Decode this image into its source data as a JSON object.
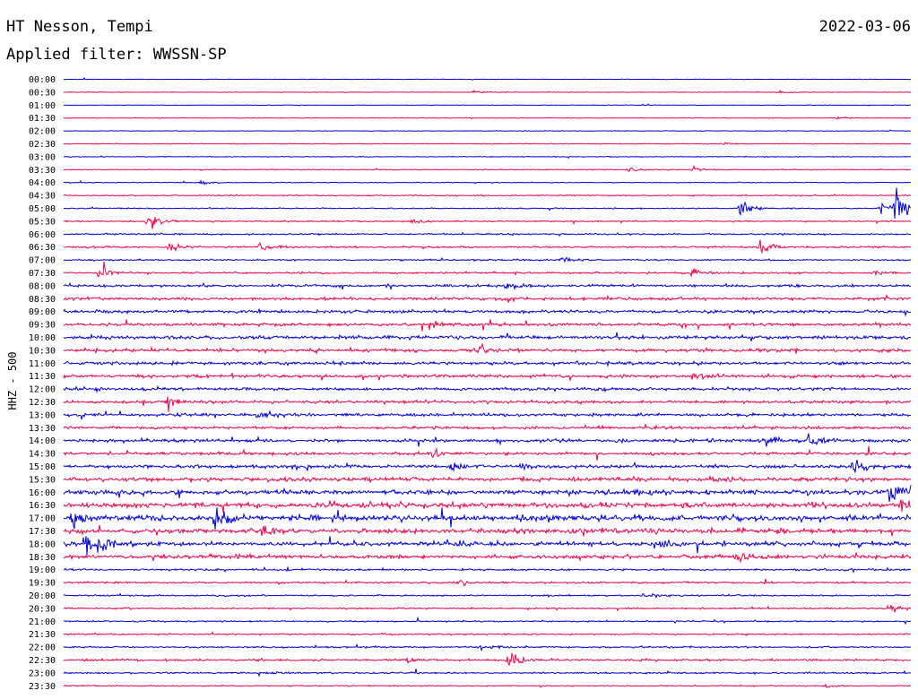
{
  "header": {
    "station": "HT Nesson, Tempi",
    "filter_label": "Applied filter: WWSSN-SP",
    "date": "2022-03-06"
  },
  "colors": {
    "even_trace": "#0000dd",
    "odd_trace": "#ee0044",
    "background": "#ffffff"
  },
  "chart_data": {
    "type": "line",
    "title": "HT Nesson, Tempi",
    "subtitle": "Applied filter: WWSSN-SP",
    "ylabel": "HHZ - 500",
    "xlabel": "",
    "grid": false,
    "legend": "none",
    "trace_minutes": 30,
    "categories": [
      "00:00",
      "00:30",
      "01:00",
      "01:30",
      "02:00",
      "02:30",
      "03:00",
      "03:30",
      "04:00",
      "04:30",
      "05:00",
      "05:30",
      "06:00",
      "06:30",
      "07:00",
      "07:30",
      "08:00",
      "08:30",
      "09:00",
      "09:30",
      "10:00",
      "10:30",
      "11:00",
      "11:30",
      "12:00",
      "12:30",
      "13:00",
      "13:30",
      "14:00",
      "14:30",
      "15:00",
      "15:30",
      "16:00",
      "16:30",
      "17:00",
      "17:30",
      "18:00",
      "18:30",
      "19:00",
      "19:30",
      "20:00",
      "20:30",
      "21:00",
      "21:30",
      "22:00",
      "22:30",
      "23:00",
      "23:30"
    ],
    "noise_level": [
      0.3,
      0.3,
      0.3,
      0.3,
      0.3,
      0.35,
      0.4,
      0.4,
      0.4,
      0.6,
      0.6,
      0.7,
      0.8,
      0.9,
      0.8,
      0.9,
      1.3,
      1.5,
      1.6,
      1.6,
      1.8,
      1.7,
      1.6,
      1.6,
      1.6,
      1.5,
      1.5,
      1.4,
      1.6,
      1.5,
      1.8,
      2.2,
      2.4,
      2.6,
      3.0,
      2.5,
      2.2,
      2.0,
      1.0,
      0.9,
      0.8,
      0.8,
      0.8,
      0.8,
      0.9,
      1.1,
      0.9,
      0.6
    ],
    "events": [
      {
        "trace": "00:30",
        "minute": 14.5,
        "amplitude": 2
      },
      {
        "trace": "00:30",
        "minute": 25.3,
        "amplitude": 3
      },
      {
        "trace": "01:30",
        "minute": 27.4,
        "amplitude": 2
      },
      {
        "trace": "02:30",
        "minute": 23.3,
        "amplitude": 2
      },
      {
        "trace": "03:30",
        "minute": 20.0,
        "amplitude": 3
      },
      {
        "trace": "03:30",
        "minute": 22.3,
        "amplitude": 3
      },
      {
        "trace": "04:00",
        "minute": 4.9,
        "amplitude": 2
      },
      {
        "trace": "05:00",
        "minute": 24.0,
        "amplitude": 12
      },
      {
        "trace": "05:00",
        "minute": 29.0,
        "amplitude": 10
      },
      {
        "trace": "05:00",
        "minute": 29.5,
        "amplitude": 40
      },
      {
        "trace": "05:30",
        "minute": 3.0,
        "amplitude": 11
      },
      {
        "trace": "05:30",
        "minute": 12.4,
        "amplitude": 4
      },
      {
        "trace": "06:30",
        "minute": 3.8,
        "amplitude": 5
      },
      {
        "trace": "06:30",
        "minute": 7.0,
        "amplitude": 4
      },
      {
        "trace": "06:30",
        "minute": 24.7,
        "amplitude": 12
      },
      {
        "trace": "07:00",
        "minute": 17.7,
        "amplitude": 4
      },
      {
        "trace": "07:30",
        "minute": 1.3,
        "amplitude": 11
      },
      {
        "trace": "07:30",
        "minute": 22.3,
        "amplitude": 5
      },
      {
        "trace": "07:30",
        "minute": 28.6,
        "amplitude": 4
      },
      {
        "trace": "08:00",
        "minute": 15.7,
        "amplitude": 6
      },
      {
        "trace": "09:30",
        "minute": 13.0,
        "amplitude": 6
      },
      {
        "trace": "10:30",
        "minute": 14.8,
        "amplitude": 7
      },
      {
        "trace": "11:30",
        "minute": 22.3,
        "amplitude": 6
      },
      {
        "trace": "12:30",
        "minute": 3.7,
        "amplitude": 10
      },
      {
        "trace": "13:00",
        "minute": 6.9,
        "amplitude": 6
      },
      {
        "trace": "14:00",
        "minute": 24.9,
        "amplitude": 9
      },
      {
        "trace": "14:00",
        "minute": 26.4,
        "amplitude": 8
      },
      {
        "trace": "14:30",
        "minute": 13.1,
        "amplitude": 5
      },
      {
        "trace": "15:00",
        "minute": 13.7,
        "amplitude": 4
      },
      {
        "trace": "15:00",
        "minute": 16.3,
        "amplitude": 4
      },
      {
        "trace": "15:00",
        "minute": 28.0,
        "amplitude": 8
      },
      {
        "trace": "16:00",
        "minute": 29.3,
        "amplitude": 12
      },
      {
        "trace": "16:30",
        "minute": 29.7,
        "amplitude": 6
      },
      {
        "trace": "17:00",
        "minute": 0.3,
        "amplitude": 10
      },
      {
        "trace": "17:00",
        "minute": 5.4,
        "amplitude": 18
      },
      {
        "trace": "17:30",
        "minute": 7.0,
        "amplitude": 9
      },
      {
        "trace": "18:00",
        "minute": 0.8,
        "amplitude": 14
      },
      {
        "trace": "18:00",
        "minute": 1.3,
        "amplitude": 18
      },
      {
        "trace": "18:00",
        "minute": 20.9,
        "amplitude": 7
      },
      {
        "trace": "18:30",
        "minute": 23.8,
        "amplitude": 7
      },
      {
        "trace": "19:30",
        "minute": 14.0,
        "amplitude": 4
      },
      {
        "trace": "20:00",
        "minute": 20.6,
        "amplitude": 3
      },
      {
        "trace": "20:30",
        "minute": 29.4,
        "amplitude": 6
      },
      {
        "trace": "22:00",
        "minute": 14.8,
        "amplitude": 3
      },
      {
        "trace": "22:30",
        "minute": 15.8,
        "amplitude": 12
      },
      {
        "trace": "22:30",
        "minute": 12.2,
        "amplitude": 4
      },
      {
        "trace": "23:00",
        "minute": 7.3,
        "amplitude": 3
      },
      {
        "trace": "23:30",
        "minute": 27.0,
        "amplitude": 2
      }
    ]
  }
}
